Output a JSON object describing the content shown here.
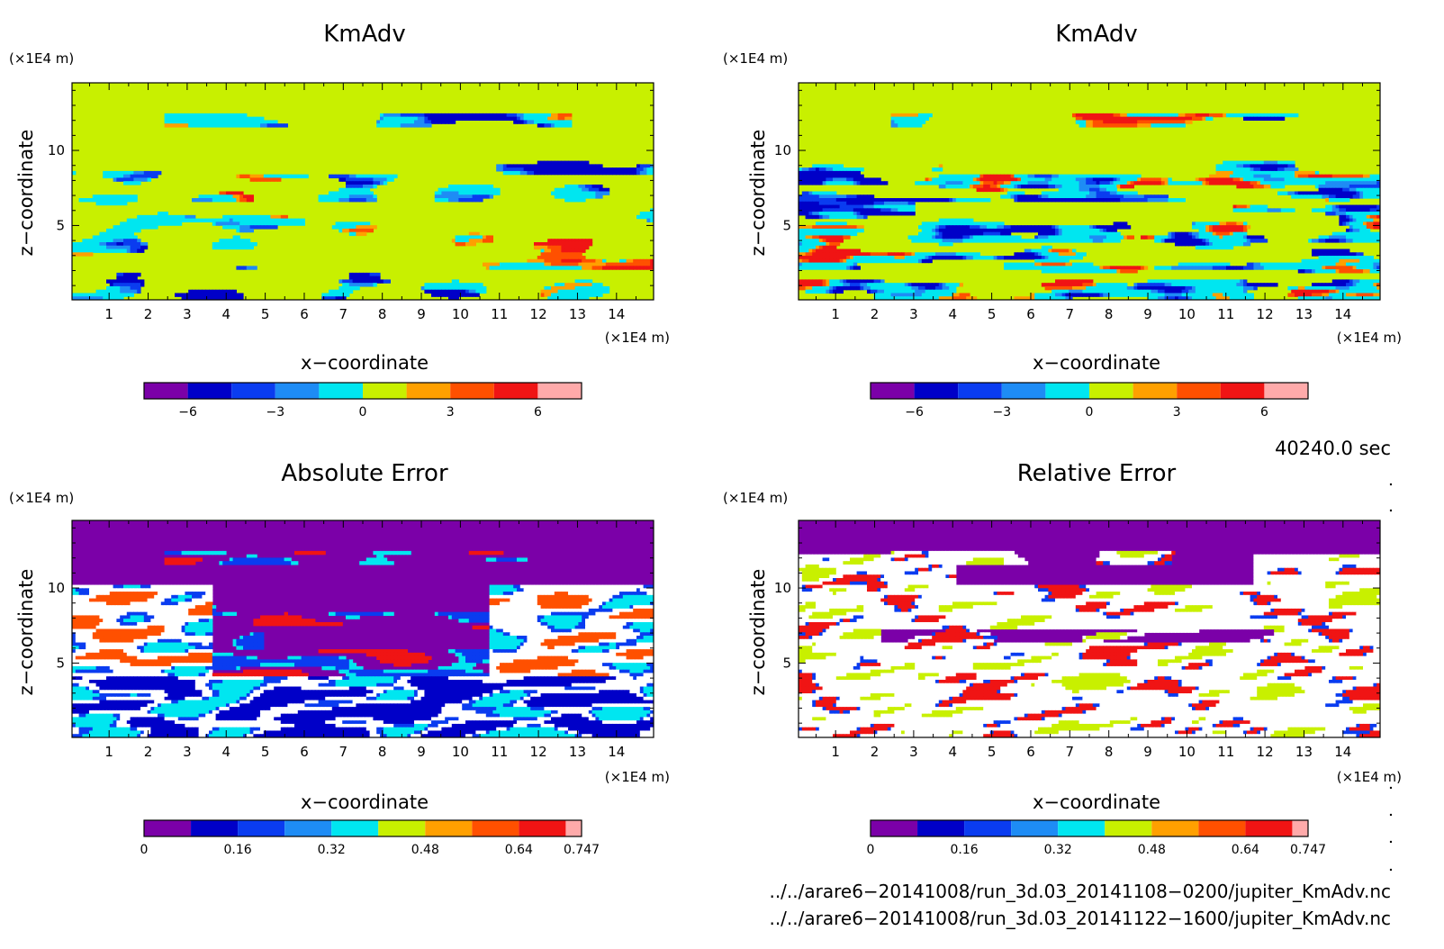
{
  "panels": [
    {
      "title": "KmAdv",
      "xlabel": "x−coordinate",
      "ylabel": "z−coordinate",
      "x_unit": "(×1E4 m)",
      "y_unit": "(×1E4 m)",
      "colorbar": {
        "colors": [
          "#7b00a8",
          "#0000c8",
          "#0a3cf0",
          "#1e8cf5",
          "#00e6f0",
          "#c8f000",
          "#ffa000",
          "#ff5000",
          "#f01414",
          "#ffaaaa"
        ],
        "labels": [
          "−6",
          "−3",
          "0",
          "3",
          "6"
        ]
      }
    },
    {
      "title": "KmAdv",
      "xlabel": "x−coordinate",
      "ylabel": "z−coordinate",
      "x_unit": "(×1E4 m)",
      "y_unit": "(×1E4 m)",
      "colorbar": {
        "colors": [
          "#7b00a8",
          "#0000c8",
          "#0a3cf0",
          "#1e8cf5",
          "#00e6f0",
          "#c8f000",
          "#ffa000",
          "#ff5000",
          "#f01414",
          "#ffaaaa"
        ],
        "labels": [
          "−6",
          "−3",
          "0",
          "3",
          "6"
        ]
      }
    },
    {
      "title": "Absolute Error",
      "xlabel": "x−coordinate",
      "ylabel": "z−coordinate",
      "x_unit": "(×1E4 m)",
      "y_unit": "(×1E4 m)",
      "colorbar": {
        "colors": [
          "#7b00a8",
          "#0000c8",
          "#0a3cf0",
          "#1e8cf5",
          "#00e6f0",
          "#c8f000",
          "#ffa000",
          "#ff5000",
          "#f01414",
          "#ffaaaa"
        ],
        "labels": [
          "0",
          "0.16",
          "0.32",
          "0.48",
          "0.64",
          "0.747"
        ]
      }
    },
    {
      "title": "Relative Error",
      "xlabel": "x−coordinate",
      "ylabel": "z−coordinate",
      "x_unit": "(×1E4 m)",
      "y_unit": "(×1E4 m)",
      "colorbar": {
        "colors": [
          "#7b00a8",
          "#0000c8",
          "#0a3cf0",
          "#1e8cf5",
          "#00e6f0",
          "#c8f000",
          "#ffa000",
          "#ff5000",
          "#f01414",
          "#ffaaaa"
        ],
        "labels": [
          "0",
          "0.16",
          "0.32",
          "0.48",
          "0.64",
          "0.747"
        ]
      }
    }
  ],
  "time_label": "40240.0 sec",
  "file_paths": [
    "../../arare6−20141008/run_3d.03_20141108−0200/jupiter_KmAdv.nc",
    "../../arare6−20141008/run_3d.03_20141122−1600/jupiter_KmAdv.nc"
  ],
  "chart_data": [
    {
      "type": "heatmap",
      "title": "KmAdv",
      "xlabel": "x−coordinate",
      "ylabel": "z−coordinate",
      "x_ticks": [
        1,
        2,
        3,
        4,
        5,
        6,
        7,
        8,
        9,
        10,
        11,
        12,
        13,
        14
      ],
      "y_ticks": [
        5,
        10
      ],
      "xlim": [
        0.05,
        14.95
      ],
      "ylim": [
        0.05,
        14.5
      ],
      "colorbar_labels": [
        "−6",
        "−3",
        "0",
        "3",
        "6"
      ],
      "colorbar_levels": [
        -7.5,
        -6,
        -4.5,
        -3,
        -1.5,
        0,
        1.5,
        3,
        4.5,
        6,
        7.5
      ]
    },
    {
      "type": "heatmap",
      "title": "KmAdv",
      "xlabel": "x−coordinate",
      "ylabel": "z−coordinate",
      "x_ticks": [
        1,
        2,
        3,
        4,
        5,
        6,
        7,
        8,
        9,
        10,
        11,
        12,
        13,
        14
      ],
      "y_ticks": [
        5,
        10
      ],
      "xlim": [
        0.05,
        14.95
      ],
      "ylim": [
        0.05,
        14.5
      ],
      "colorbar_labels": [
        "−6",
        "−3",
        "0",
        "3",
        "6"
      ],
      "colorbar_levels": [
        -7.5,
        -6,
        -4.5,
        -3,
        -1.5,
        0,
        1.5,
        3,
        4.5,
        6,
        7.5
      ]
    },
    {
      "type": "heatmap",
      "title": "Absolute Error",
      "xlabel": "x−coordinate",
      "ylabel": "z−coordinate",
      "x_ticks": [
        1,
        2,
        3,
        4,
        5,
        6,
        7,
        8,
        9,
        10,
        11,
        12,
        13,
        14
      ],
      "y_ticks": [
        5,
        10
      ],
      "xlim": [
        0.05,
        14.95
      ],
      "ylim": [
        0.05,
        14.5
      ],
      "colorbar_labels": [
        "0",
        "0.16",
        "0.32",
        "0.48",
        "0.64",
        "0.747"
      ],
      "colorbar_levels": [
        0,
        0.08,
        0.16,
        0.24,
        0.32,
        0.4,
        0.48,
        0.56,
        0.64,
        0.72,
        0.747
      ]
    },
    {
      "type": "heatmap",
      "title": "Relative Error",
      "xlabel": "x−coordinate",
      "ylabel": "z−coordinate",
      "x_ticks": [
        1,
        2,
        3,
        4,
        5,
        6,
        7,
        8,
        9,
        10,
        11,
        12,
        13,
        14
      ],
      "y_ticks": [
        5,
        10
      ],
      "xlim": [
        0.05,
        14.95
      ],
      "ylim": [
        0.05,
        14.5
      ],
      "colorbar_labels": [
        "0",
        "0.16",
        "0.32",
        "0.48",
        "0.64",
        "0.747"
      ],
      "colorbar_levels": [
        0,
        0.08,
        0.16,
        0.24,
        0.32,
        0.4,
        0.48,
        0.56,
        0.64,
        0.72,
        0.747
      ]
    }
  ]
}
